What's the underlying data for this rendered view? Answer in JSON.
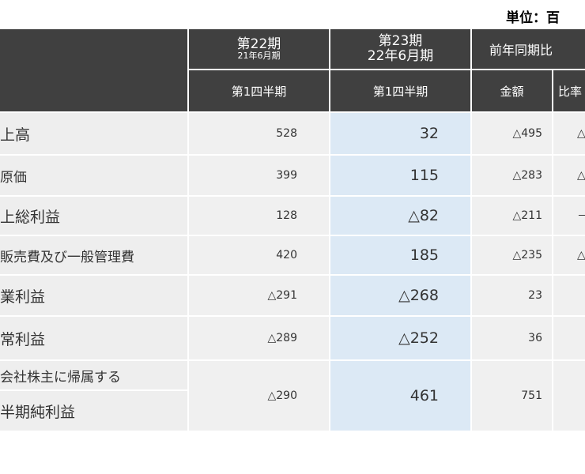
{
  "unit_label": "単位：百",
  "headers": {
    "p22_title": "第22期",
    "p22_sub": "21年6月期",
    "p23_title": "第23期",
    "p23_sub": "22年6月期",
    "yoy": "前年同期比",
    "q1_a": "第1四半期",
    "q1_b": "第1四半期",
    "amount": "金額",
    "ratio": "比率"
  },
  "rows": [
    {
      "label": "上高",
      "p22": "528",
      "p23": "32",
      "amount": "△495",
      "ratio": "△"
    },
    {
      "label": "原価",
      "p22": "399",
      "p23": "115",
      "amount": "△283",
      "ratio": "△"
    },
    {
      "label": "上総利益",
      "p22": "128",
      "p23": "△82",
      "amount": "△211",
      "ratio": "－"
    },
    {
      "label": "販売費及び一般管理費",
      "p22": "420",
      "p23": "185",
      "amount": "△235",
      "ratio": "△"
    },
    {
      "label": "業利益",
      "p22": "△291",
      "p23": "△268",
      "amount": "23",
      "ratio": ""
    },
    {
      "label": "常利益",
      "p22": "△289",
      "p23": "△252",
      "amount": "36",
      "ratio": ""
    }
  ],
  "last_row": {
    "label_line1": "会社株主に帰属する",
    "label_line2": "半期純利益",
    "p22": "△290",
    "p23": "461",
    "amount": "751",
    "ratio": ""
  }
}
